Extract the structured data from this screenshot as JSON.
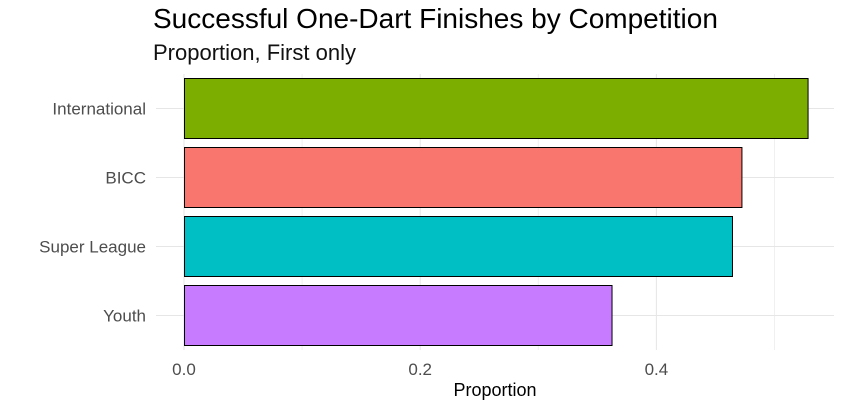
{
  "chart_data": {
    "type": "bar",
    "orientation": "horizontal",
    "title": "Successful One-Dart Finishes by Competition",
    "subtitle": "Proportion, First only",
    "xlabel": "Proportion",
    "ylabel": "",
    "categories": [
      "International",
      "BICC",
      "Super League",
      "Youth"
    ],
    "values": [
      0.528,
      0.472,
      0.464,
      0.362
    ],
    "colors": [
      "#7CAE00",
      "#F8766D",
      "#00BFC4",
      "#C77CFF"
    ],
    "xlim": [
      0,
      0.55
    ],
    "xticks": [
      "0.0",
      "0.2",
      "0.4"
    ],
    "xtick_values": [
      0,
      0.2,
      0.4
    ],
    "grid": true,
    "legend": "none"
  }
}
